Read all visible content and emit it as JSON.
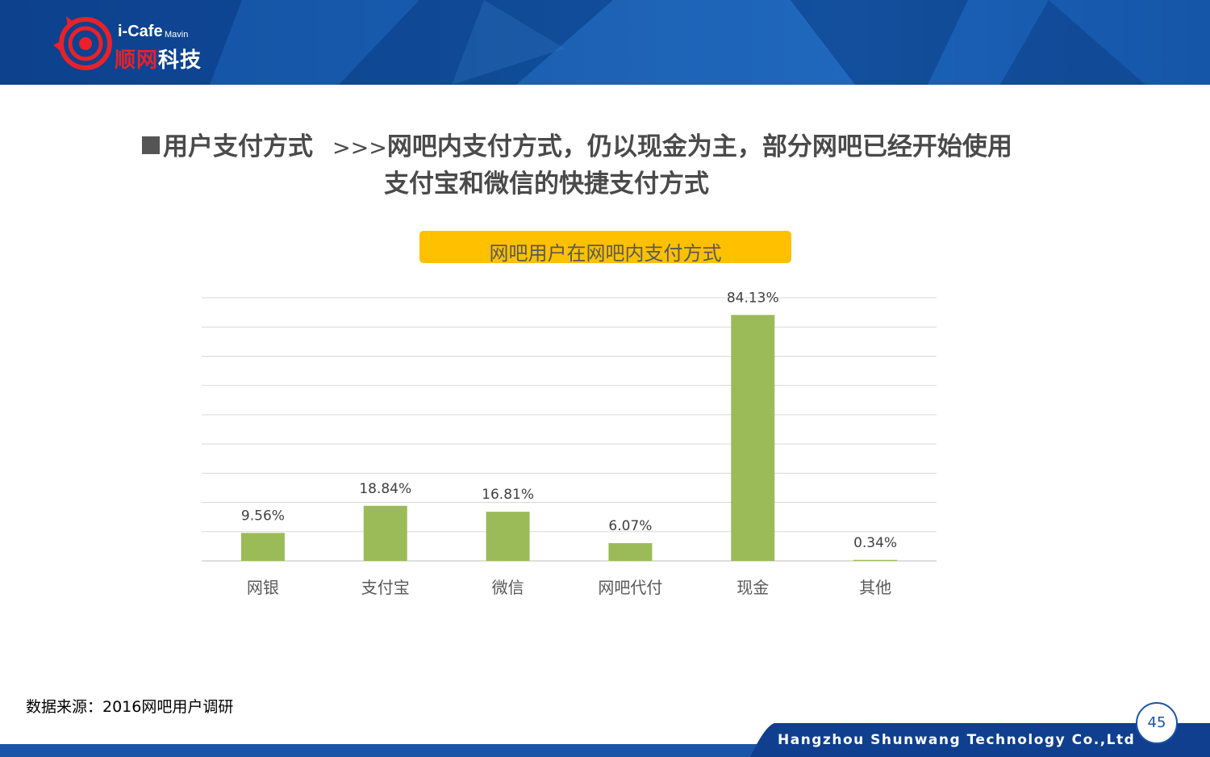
{
  "header": {
    "logo_text": "i-Cafe",
    "logo_sub": "Mavin",
    "logo_cn_red": "顺网",
    "logo_cn_white": "科技"
  },
  "title": {
    "section": "用户支付方式",
    "arrows": ">>>",
    "line1": "网吧内支付方式，仍以现金为主，部分网吧已经开始使用",
    "line2": "支付宝和微信的快捷支付方式"
  },
  "chart_data": {
    "type": "bar",
    "title": "网吧用户在网吧内支付方式",
    "categories": [
      "网银",
      "支付宝",
      "微信",
      "网吧代付",
      "现金",
      "其他"
    ],
    "values": [
      9.56,
      18.84,
      16.81,
      6.07,
      84.13,
      0.34
    ],
    "value_labels": [
      "9.56%",
      "18.84%",
      "16.81%",
      "6.07%",
      "84.13%",
      "0.34%"
    ],
    "ylim": [
      0,
      90
    ],
    "grid": true,
    "bar_color": "#9bbb59"
  },
  "source": "数据来源：2016网吧用户调研",
  "footer": {
    "company": "Hangzhou Shunwang Technology Co.,Ltd",
    "page": "45"
  }
}
